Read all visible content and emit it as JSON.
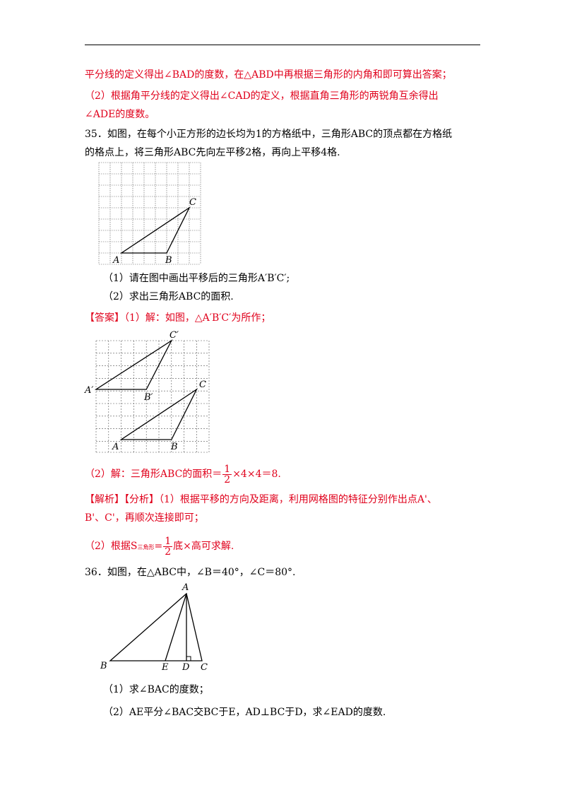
{
  "lines": {
    "l1": "平分线的定义得出∠BAD的度数，在△ABD中再根据三角形的内角和即可算出答案；",
    "l2": "（2）根据角平分线的定义得出∠CAD的定义，根据直角三角形的两锐角互余得出",
    "l3": "∠ADE的度数。",
    "q35_1": "35．如图，在每个小正方形的边长均为1的方格纸中，三角形ABC的顶点都在方格纸",
    "q35_2": "的格点上，将三角形ABC先向左平移2格，再向上平移4格.",
    "q35_p1": "（1）请在图中画出平移后的三角形A′B′C′;",
    "q35_p2": "（2）求出三角形ABC的面积.",
    "ans_tag": "【答案】",
    "ans_text": "（1）解：如图，△A′B′C′为所作；",
    "ans2_pre": "（2）解：三角形ABC的面积＝",
    "ans2_num": "1",
    "ans2_den": "2",
    "ans2_post": "×4×4＝8.",
    "an_tag": "【解析】【分析】",
    "an_text": "（1）根据平移的方向及距离，利用网格图的特征分别作出点A'、",
    "an_text2": "B'、C'，再顺次连接即可；",
    "an2_pre": "（2）根据S",
    "an2_sub": "三角形",
    "an2_eq": "=",
    "an2_num": "1",
    "an2_den": "2",
    "an2_post": "底×高可求解.",
    "q36": "36．如图，在△ABC中，∠B＝40°，∠C＝80°.",
    "q36_p1": "（1）求∠BAC的度数；",
    "q36_p2": "（2）AE平分∠BAC交BC于E，AD⊥BC于D，求∠EAD的度数."
  },
  "fig1_labels": {
    "A": "A",
    "B": "B",
    "C": "C"
  },
  "fig2_labels": {
    "A": "A",
    "B": "B",
    "C": "C",
    "A1": "A′",
    "B1": "B′",
    "C1": "C′"
  },
  "fig3_labels": {
    "A": "A",
    "B": "B",
    "C": "C",
    "D": "D",
    "E": "E"
  }
}
